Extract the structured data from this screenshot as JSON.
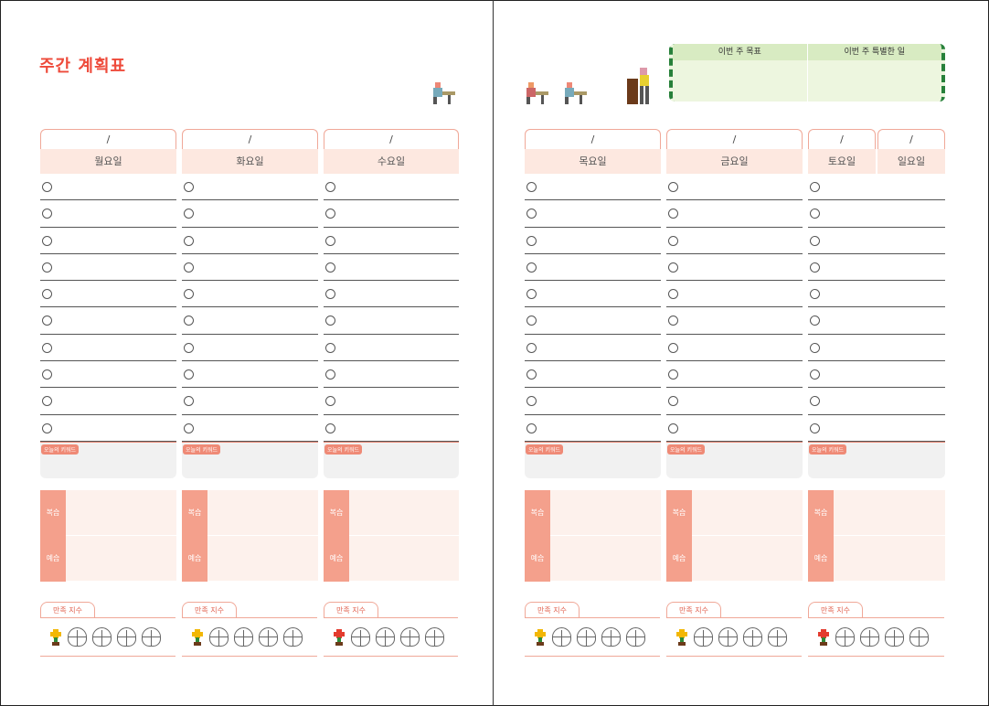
{
  "title": "주간 계획표",
  "goals": {
    "goal_label": "이번 주 목표",
    "special_label": "이번 주 특별한 일"
  },
  "date_sep": "/",
  "keyword_label": "오늘의 키워드",
  "review_label": "복습",
  "preview_label": "예습",
  "satisfaction_label": "만족 지수",
  "days": [
    "월요일",
    "화요일",
    "수요일",
    "목요일",
    "금요일",
    "토요일",
    "일요일"
  ],
  "colors": {
    "accent": "#ee4a3a",
    "header_bg": "#fde8e0",
    "tag": "#f4a08c",
    "goal_bg": "#edf6df",
    "goal_border": "#27803a"
  },
  "flower_colors": [
    "#f2b705",
    "#f2b705",
    "#e33b2e",
    "#f2b705",
    "#f2b705",
    "#e33b2e"
  ]
}
